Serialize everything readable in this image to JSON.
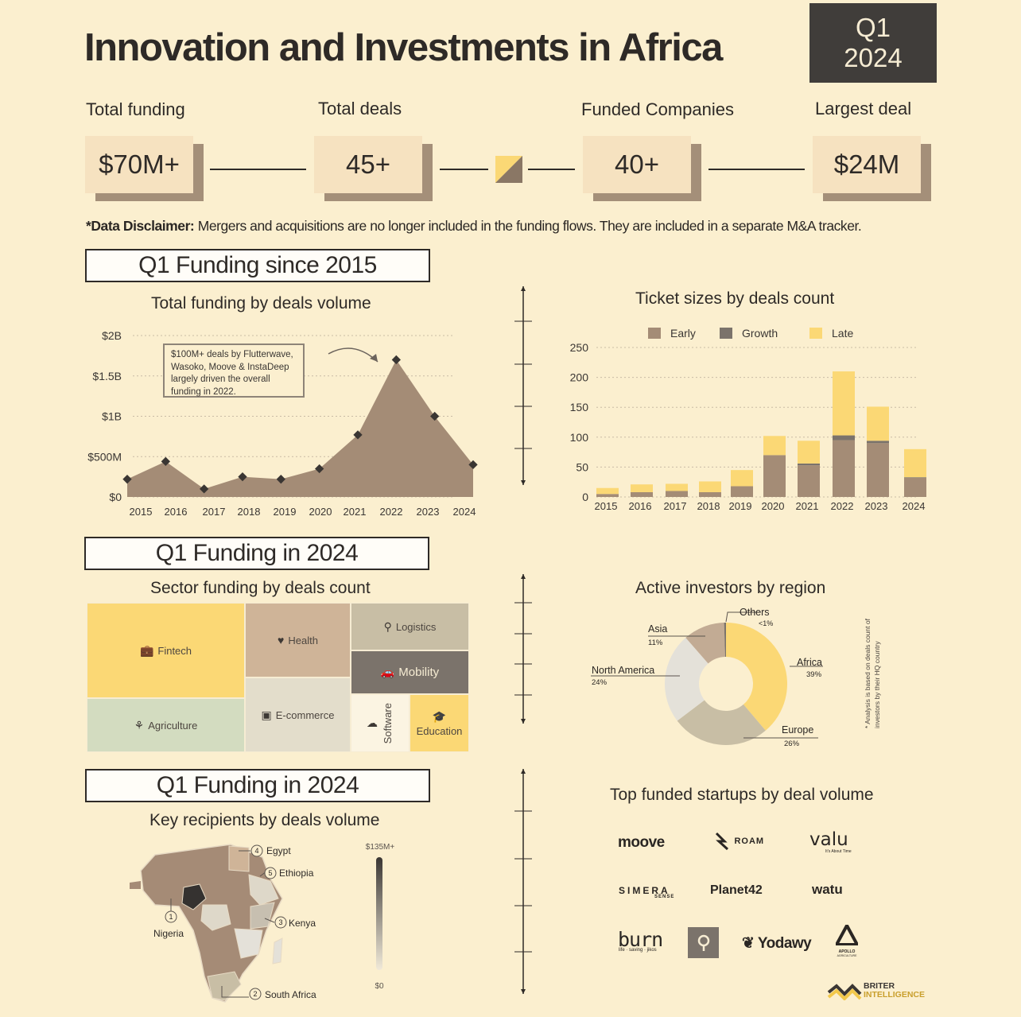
{
  "header": {
    "title": "Innovation and Investments in Africa",
    "quarter": "Q1",
    "year": "2024"
  },
  "stats": [
    {
      "label": "Total funding",
      "value": "$70M+"
    },
    {
      "label": "Total deals",
      "value": "45+"
    },
    {
      "label": "Funded Companies",
      "value": "40+"
    },
    {
      "label": "Largest deal",
      "value": "$24M"
    }
  ],
  "disclaimer": {
    "bold": "*Data Disclaimer:",
    "text": " Mergers and acquisitions are no longer included in the funding flows. They are included in a separate M&A tracker."
  },
  "sections": {
    "s1": "Q1 Funding since 2015",
    "s2": "Q1 Funding in 2024",
    "s3": "Q1 Funding in 2024"
  },
  "chart_data": [
    {
      "type": "area",
      "title": "Total funding by deals volume",
      "x": [
        "2015",
        "2016",
        "2017",
        "2018",
        "2019",
        "2020",
        "2021",
        "2022",
        "2023",
        "2024"
      ],
      "values": [
        0.22,
        0.44,
        0.1,
        0.25,
        0.22,
        0.35,
        0.77,
        1.7,
        1.0,
        0.4
      ],
      "unit": "billion USD",
      "yticks": [
        {
          "v": 0,
          "label": "$0"
        },
        {
          "v": 0.5,
          "label": "$500M"
        },
        {
          "v": 1.0,
          "label": "$1B"
        },
        {
          "v": 1.5,
          "label": "$1.5B"
        },
        {
          "v": 2.0,
          "label": "$2B"
        }
      ],
      "ylim": [
        0,
        2.0
      ],
      "annotation": "$100M+ deals by Flutterwave, Wasoko, Moove & InstaDeep largely driven the overall funding in 2022.",
      "colors": {
        "fill": "#a48c76",
        "marker": "#3a3633"
      }
    },
    {
      "type": "bar",
      "stacked": true,
      "title": "Ticket sizes by deals count",
      "categories": [
        "2015",
        "2016",
        "2017",
        "2018",
        "2019",
        "2020",
        "2021",
        "2022",
        "2023",
        "2024"
      ],
      "series": [
        {
          "name": "Early",
          "color": "#a48c76",
          "values": [
            5,
            8,
            10,
            8,
            18,
            70,
            53,
            95,
            90,
            32
          ]
        },
        {
          "name": "Growth",
          "color": "#7b736b",
          "values": [
            0,
            0,
            0,
            0,
            0,
            0,
            3,
            8,
            4,
            1
          ]
        },
        {
          "name": "Late",
          "color": "#fbd875",
          "values": [
            10,
            13,
            12,
            18,
            27,
            32,
            38,
            107,
            57,
            47
          ]
        }
      ],
      "yticks": [
        0,
        50,
        100,
        150,
        200,
        250
      ],
      "ylim": [
        0,
        250
      ],
      "legend": "top"
    },
    {
      "type": "treemap",
      "title": "Sector funding by deals count",
      "cells": [
        {
          "name": "Fintech",
          "icon": "💼",
          "color": "#fbd875"
        },
        {
          "name": "Health",
          "icon": "♥",
          "color": "#cfb498"
        },
        {
          "name": "Logistics",
          "icon": "⚲",
          "color": "#c8bea5"
        },
        {
          "name": "Mobility",
          "icon": "🚗",
          "color": "#7b736b"
        },
        {
          "name": "Agriculture",
          "icon": "⚘",
          "color": "#d3dcc0"
        },
        {
          "name": "E-commerce",
          "icon": "▣",
          "color": "#e3ddcb"
        },
        {
          "name": "Software",
          "icon": "☁",
          "color": "#fbf4e2"
        },
        {
          "name": "Education",
          "icon": "🎓",
          "color": "#fbd875"
        }
      ]
    },
    {
      "type": "pie",
      "donut": true,
      "title": "Active investors by region",
      "slices": [
        {
          "label": "Africa",
          "value": 39,
          "pct": "39%",
          "color": "#fbd875"
        },
        {
          "label": "Europe",
          "value": 26,
          "pct": "26%",
          "color": "#c8bea5"
        },
        {
          "label": "North America",
          "value": 24,
          "pct": "24%",
          "color": "#e4e1d9"
        },
        {
          "label": "Asia",
          "value": 11,
          "pct": "11%",
          "color": "#c2ab94"
        },
        {
          "label": "Others",
          "value": 0.5,
          "pct": "<1%",
          "color": "#7b736b"
        }
      ],
      "note": "* Analysis is based on deals count of investors by their HQ country"
    },
    {
      "type": "map",
      "title": "Key recipients by deals volume",
      "scale": {
        "max": "$135M+",
        "min": "$0"
      },
      "rankings": [
        {
          "rank": "1",
          "country": "Nigeria"
        },
        {
          "rank": "2",
          "country": "South Africa"
        },
        {
          "rank": "3",
          "country": "Kenya"
        },
        {
          "rank": "4",
          "country": "Egypt"
        },
        {
          "rank": "5",
          "country": "Ethiopia"
        }
      ]
    }
  ],
  "startups": {
    "title": "Top funded startups by deal volume",
    "logos": {
      "moove": "moove",
      "roam": "ROAM",
      "valu": "valu",
      "valu_sub": "It's About Time",
      "simera": "SIMERA",
      "simera_sub": "SENSE",
      "planet42": "Planet42",
      "watu": "watu",
      "burn": "burn",
      "burn_sub": "life · saving · jikos",
      "yodawy": "Yodawy",
      "apollo": "APOLLO",
      "apollo_sub": "AGRICULTURE"
    }
  },
  "brand": {
    "line1": "BRITER",
    "line2": "INTELLIGENCE"
  }
}
